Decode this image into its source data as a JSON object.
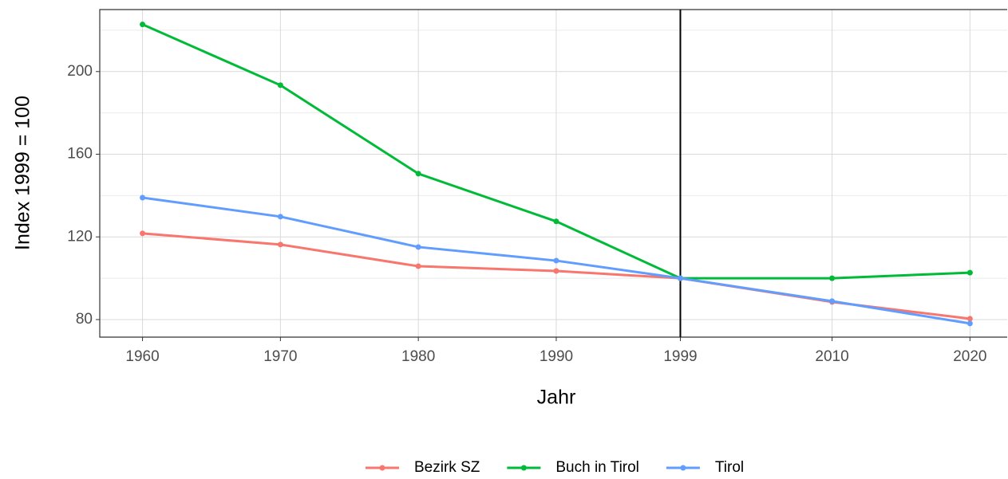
{
  "chart_data": {
    "type": "line",
    "x_label": "Jahr",
    "y_label": "Index 1999 = 100",
    "x": [
      1960,
      1970,
      1980,
      1990,
      1999,
      2010,
      2020
    ],
    "series": [
      {
        "name": "Bezirk SZ",
        "color": "#F8766D",
        "values": [
          121.7,
          116.3,
          105.8,
          103.5,
          100,
          88.5,
          80.4
        ]
      },
      {
        "name": "Buch in Tirol",
        "color": "#00BA38",
        "values": [
          222.8,
          193.4,
          150.6,
          127.5,
          100,
          100,
          102.7
        ]
      },
      {
        "name": "Tirol",
        "color": "#619CFF",
        "values": [
          139.0,
          129.8,
          115.1,
          108.5,
          100,
          88.9,
          78.1
        ]
      }
    ],
    "xlim": [
      1956.9,
      2022.7
    ],
    "xticks": [
      1960,
      1970,
      1980,
      1990,
      1999,
      2010,
      2020
    ],
    "ylim": [
      71.5,
      230
    ],
    "yticks": [
      80,
      120,
      160,
      200
    ],
    "yminor_ticks": [
      100,
      140,
      180,
      220
    ],
    "vline": 1999,
    "vline_color": "#000000",
    "grid": true,
    "legend": "bottom"
  }
}
